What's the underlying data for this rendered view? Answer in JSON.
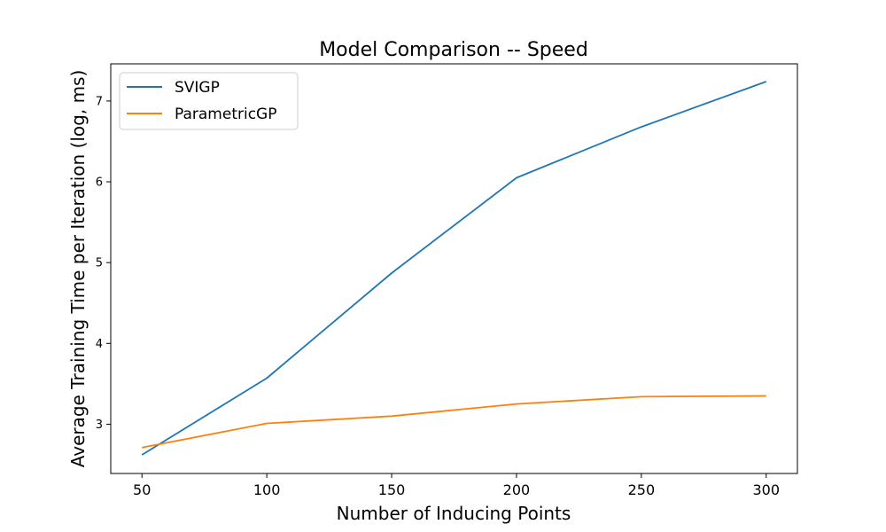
{
  "chart_data": {
    "type": "line",
    "title": "Model Comparison -- Speed",
    "xlabel": "Number of Inducing Points",
    "ylabel": "Average Training Time per Iteration (log, ms)",
    "x": [
      50,
      100,
      150,
      200,
      250,
      300
    ],
    "x_ticks": [
      50,
      100,
      150,
      200,
      250,
      300
    ],
    "y_ticks": [
      3,
      4,
      5,
      6,
      7
    ],
    "xlim": [
      37.5,
      312.5
    ],
    "ylim": [
      2.39,
      7.46
    ],
    "grid": false,
    "legend_position": "upper-left",
    "series": [
      {
        "name": "SVIGP",
        "color": "#1f77b4",
        "values": [
          2.62,
          3.57,
          4.87,
          6.05,
          6.68,
          7.24
        ]
      },
      {
        "name": "ParametricGP",
        "color": "#ff7f0e",
        "values": [
          2.71,
          3.01,
          3.1,
          3.25,
          3.34,
          3.35
        ]
      }
    ]
  }
}
